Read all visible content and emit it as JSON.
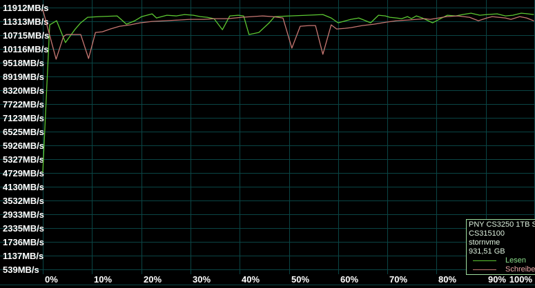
{
  "chart_data": {
    "type": "line",
    "title": "",
    "grid": true,
    "grid_color": "#0a4545",
    "background": "#000000",
    "y_unit": "MB/s",
    "ylim": [
      539,
      11912
    ],
    "xlim_percent": [
      0,
      100
    ],
    "y_ticks": [
      "11912MB/s",
      "11313MB/s",
      "10715MB/s",
      "10116MB/s",
      "9518MB/s",
      "8919MB/s",
      "8320MB/s",
      "7722MB/s",
      "7123MB/s",
      "6525MB/s",
      "5926MB/s",
      "5327MB/s",
      "4729MB/s",
      "4130MB/s",
      "3532MB/s",
      "2933MB/s",
      "2335MB/s",
      "1736MB/s",
      "1137MB/s",
      "539MB/s"
    ],
    "y_tick_values": [
      11912,
      11313,
      10715,
      10116,
      9518,
      8919,
      8320,
      7722,
      7123,
      6525,
      5926,
      5327,
      4729,
      4130,
      3532,
      2933,
      2335,
      1736,
      1137,
      539
    ],
    "x_ticks": [
      "0%",
      "10%",
      "20%",
      "30%",
      "40%",
      "50%",
      "60%",
      "70%",
      "80%",
      "90%",
      "100%"
    ],
    "x_tick_values": [
      0,
      10,
      20,
      30,
      40,
      50,
      60,
      70,
      80,
      90,
      100
    ],
    "legend_position": "bottom-right",
    "series": [
      {
        "name": "Lesen",
        "color": "#5cc832",
        "points": [
          [
            0,
            4760
          ],
          [
            1.4,
            11160
          ],
          [
            2.8,
            11340
          ],
          [
            4.6,
            10390
          ],
          [
            6.5,
            10950
          ],
          [
            7.7,
            11250
          ],
          [
            9.1,
            11490
          ],
          [
            11.4,
            11520
          ],
          [
            15.1,
            11550
          ],
          [
            17,
            11190
          ],
          [
            18.7,
            11340
          ],
          [
            20.1,
            11520
          ],
          [
            22.2,
            11640
          ],
          [
            23.1,
            11460
          ],
          [
            25.2,
            11580
          ],
          [
            27.1,
            11550
          ],
          [
            28.8,
            11610
          ],
          [
            30.6,
            11580
          ],
          [
            32,
            11520
          ],
          [
            33.4,
            11490
          ],
          [
            34.8,
            11430
          ],
          [
            36.5,
            10950
          ],
          [
            38,
            11550
          ],
          [
            39.7,
            11580
          ],
          [
            40.8,
            11550
          ],
          [
            41.9,
            10740
          ],
          [
            43.9,
            10830
          ],
          [
            46,
            11250
          ],
          [
            47.1,
            11520
          ],
          [
            50.2,
            11550
          ],
          [
            53.7,
            11580
          ],
          [
            56.9,
            11610
          ],
          [
            58.6,
            11460
          ],
          [
            60,
            11250
          ],
          [
            62.6,
            11400
          ],
          [
            64.2,
            11460
          ],
          [
            65.6,
            11340
          ],
          [
            66.6,
            11250
          ],
          [
            68.2,
            11580
          ],
          [
            69.6,
            11550
          ],
          [
            70.5,
            11490
          ],
          [
            71.9,
            11460
          ],
          [
            72.9,
            11430
          ],
          [
            74.1,
            11520
          ],
          [
            74.9,
            11430
          ],
          [
            75.9,
            11550
          ],
          [
            77.1,
            11460
          ],
          [
            78.3,
            11340
          ],
          [
            79.2,
            11250
          ],
          [
            80.8,
            11430
          ],
          [
            82.2,
            11580
          ],
          [
            83.9,
            11550
          ],
          [
            85.3,
            11610
          ],
          [
            87,
            11670
          ],
          [
            88.8,
            11580
          ],
          [
            90.2,
            11610
          ],
          [
            92.3,
            11640
          ],
          [
            94,
            11550
          ],
          [
            95.5,
            11580
          ],
          [
            97.2,
            11670
          ],
          [
            98.6,
            11640
          ],
          [
            99.7,
            11610
          ]
        ]
      },
      {
        "name": "Schreiben",
        "color": "#c87873",
        "points": [
          [
            0,
            11820
          ],
          [
            2.7,
            9670
          ],
          [
            4.2,
            10650
          ],
          [
            4.8,
            10740
          ],
          [
            7.7,
            10740
          ],
          [
            9.3,
            9700
          ],
          [
            10.7,
            10830
          ],
          [
            12.1,
            10860
          ],
          [
            13.7,
            10980
          ],
          [
            15.6,
            11100
          ],
          [
            17.7,
            11160
          ],
          [
            19.8,
            11250
          ],
          [
            22.2,
            11310
          ],
          [
            25,
            11340
          ],
          [
            27.5,
            11370
          ],
          [
            29.9,
            11400
          ],
          [
            32.7,
            11400
          ],
          [
            34.8,
            11430
          ],
          [
            37.6,
            11430
          ],
          [
            40.4,
            11490
          ],
          [
            42.5,
            11520
          ],
          [
            44.6,
            11550
          ],
          [
            46.7,
            11520
          ],
          [
            48.8,
            11460
          ],
          [
            50.6,
            10150
          ],
          [
            52.3,
            11100
          ],
          [
            54.1,
            11130
          ],
          [
            55.4,
            11130
          ],
          [
            56.9,
            9880
          ],
          [
            58.6,
            11160
          ],
          [
            59.7,
            10980
          ],
          [
            61.4,
            11010
          ],
          [
            62.6,
            11040
          ],
          [
            64.9,
            11130
          ],
          [
            67.3,
            11190
          ],
          [
            69.8,
            11280
          ],
          [
            71.9,
            11340
          ],
          [
            74.1,
            11370
          ],
          [
            75.9,
            11400
          ],
          [
            77.6,
            11430
          ],
          [
            78.7,
            11400
          ],
          [
            80.4,
            11460
          ],
          [
            82,
            11520
          ],
          [
            84.3,
            11550
          ],
          [
            86.7,
            11490
          ],
          [
            88.5,
            11340
          ],
          [
            90.2,
            11460
          ],
          [
            91.3,
            11520
          ],
          [
            92.6,
            11490
          ],
          [
            94,
            11460
          ],
          [
            95.1,
            11400
          ],
          [
            96.9,
            11520
          ],
          [
            98.3,
            11460
          ],
          [
            99.7,
            11340
          ]
        ]
      }
    ]
  },
  "legend_box": {
    "border_color": "#9fdf9f",
    "lines": [
      "PNY CS3250 1TB S",
      "CS315100",
      "stornvme",
      "931,51 GB"
    ],
    "entries": [
      {
        "label": "Lesen",
        "swatch_color": "#5cc832"
      },
      {
        "label": "Schreiben",
        "swatch_color": "#c87873"
      }
    ]
  }
}
